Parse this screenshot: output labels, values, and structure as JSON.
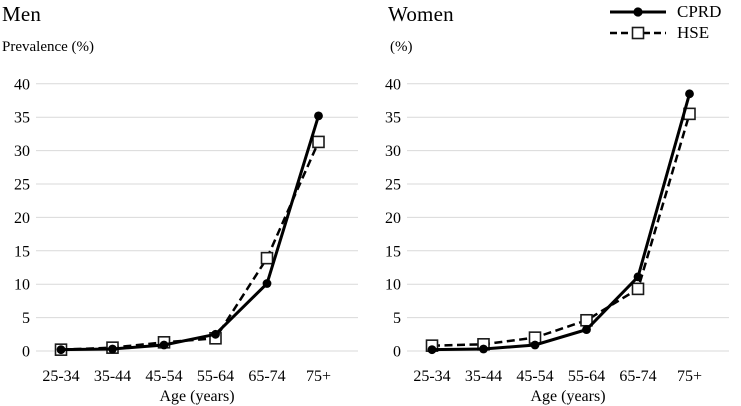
{
  "figure": {
    "legend": {
      "items": [
        {
          "label": "CPRD",
          "line": "solid",
          "marker": "filled-circle"
        },
        {
          "label": "HSE",
          "line": "dashed",
          "marker": "open-square"
        }
      ],
      "position": "top-right"
    },
    "colors": {
      "series": "#000000",
      "grid": "#d9d9d9",
      "text": "#000000",
      "marker_fill": "#ffffff",
      "marker_stroke": "#1a1a1a"
    }
  },
  "chart_data": [
    {
      "type": "line",
      "title": "Men",
      "ylabel": "Prevalence (%)",
      "xlabel": "Age (years)",
      "categories": [
        "25-34",
        "35-44",
        "45-54",
        "55-64",
        "65-74",
        "75+"
      ],
      "yticks": [
        0,
        5,
        10,
        15,
        20,
        25,
        30,
        35,
        40
      ],
      "ylim": [
        0,
        40
      ],
      "grid": true,
      "legend_position": "top-right",
      "series": [
        {
          "name": "CPRD",
          "line": "solid",
          "marker": "filled-circle",
          "values": [
            0.2,
            0.3,
            0.9,
            2.5,
            10.1,
            35.2
          ]
        },
        {
          "name": "HSE",
          "line": "dashed",
          "marker": "open-square",
          "values": [
            0.2,
            0.5,
            1.3,
            1.9,
            13.9,
            31.3
          ]
        }
      ]
    },
    {
      "type": "line",
      "title": "Women",
      "ylabel": "(%)",
      "xlabel": "Age (years)",
      "categories": [
        "25-34",
        "35-44",
        "45-54",
        "55-64",
        "65-74",
        "75+"
      ],
      "yticks": [
        0,
        5,
        10,
        15,
        20,
        25,
        30,
        35,
        40
      ],
      "ylim": [
        0,
        40
      ],
      "grid": true,
      "legend_position": "top-right",
      "series": [
        {
          "name": "CPRD",
          "line": "solid",
          "marker": "filled-circle",
          "values": [
            0.2,
            0.3,
            0.9,
            3.2,
            11.1,
            38.5
          ]
        },
        {
          "name": "HSE",
          "line": "dashed",
          "marker": "open-square",
          "values": [
            0.8,
            1.0,
            2.0,
            4.6,
            9.3,
            35.5
          ]
        }
      ]
    }
  ]
}
